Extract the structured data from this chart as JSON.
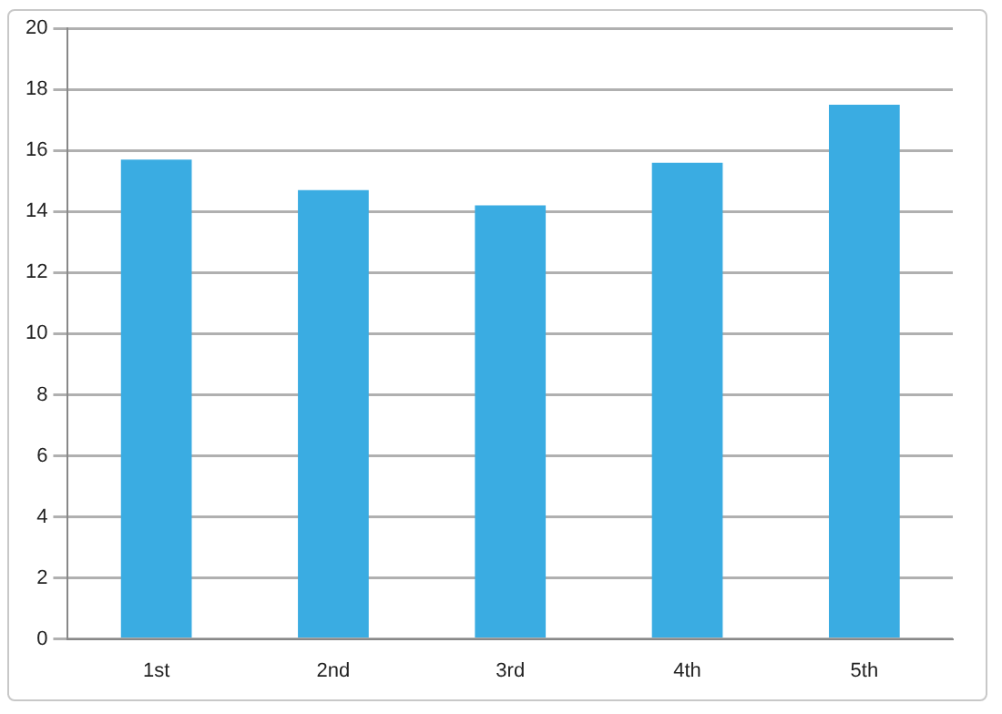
{
  "chart_data": {
    "type": "bar",
    "categories": [
      "1st",
      "2nd",
      "3rd",
      "4th",
      "5th"
    ],
    "values": [
      15.7,
      14.7,
      14.2,
      15.6,
      17.5
    ],
    "color": "#3aace2",
    "ylim": [
      0,
      20
    ],
    "yticks": [
      0,
      2,
      4,
      6,
      8,
      10,
      12,
      14,
      16,
      18,
      20
    ],
    "grid": "y"
  }
}
